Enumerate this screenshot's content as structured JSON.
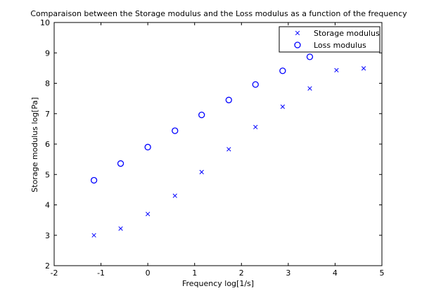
{
  "chart_data": {
    "type": "scatter",
    "title": "Comparaison between the Storage modulus and the Loss modulus as a function of the frequency",
    "xlabel": "Frequency  log[1/s]",
    "ylabel": "Storage modulus log[Pa]",
    "xlim": [
      -2,
      5
    ],
    "ylim": [
      2,
      10
    ],
    "xticks": [
      "-2",
      "-1",
      "0",
      "1",
      "2",
      "3",
      "4",
      "5"
    ],
    "yticks": [
      "2",
      "3",
      "4",
      "5",
      "6",
      "7",
      "8",
      "9",
      "10"
    ],
    "grid": false,
    "legend_position": "top-right",
    "series": [
      {
        "name": "Storage modulus",
        "marker": "x",
        "color": "#0000ff",
        "x": [
          -1.15,
          -0.58,
          0.0,
          0.58,
          1.15,
          1.73,
          2.3,
          2.88,
          3.46,
          4.03,
          4.61
        ],
        "y": [
          3.0,
          3.22,
          3.7,
          4.3,
          5.08,
          5.83,
          6.56,
          7.23,
          7.83,
          8.43,
          8.49
        ]
      },
      {
        "name": "Loss modulus",
        "marker": "o",
        "color": "#0000ff",
        "x": [
          -1.15,
          -0.58,
          0.0,
          0.58,
          1.15,
          1.73,
          2.3,
          2.88,
          3.46
        ],
        "y": [
          4.81,
          5.36,
          5.9,
          6.44,
          6.96,
          7.45,
          7.96,
          8.41,
          8.87
        ]
      }
    ]
  }
}
